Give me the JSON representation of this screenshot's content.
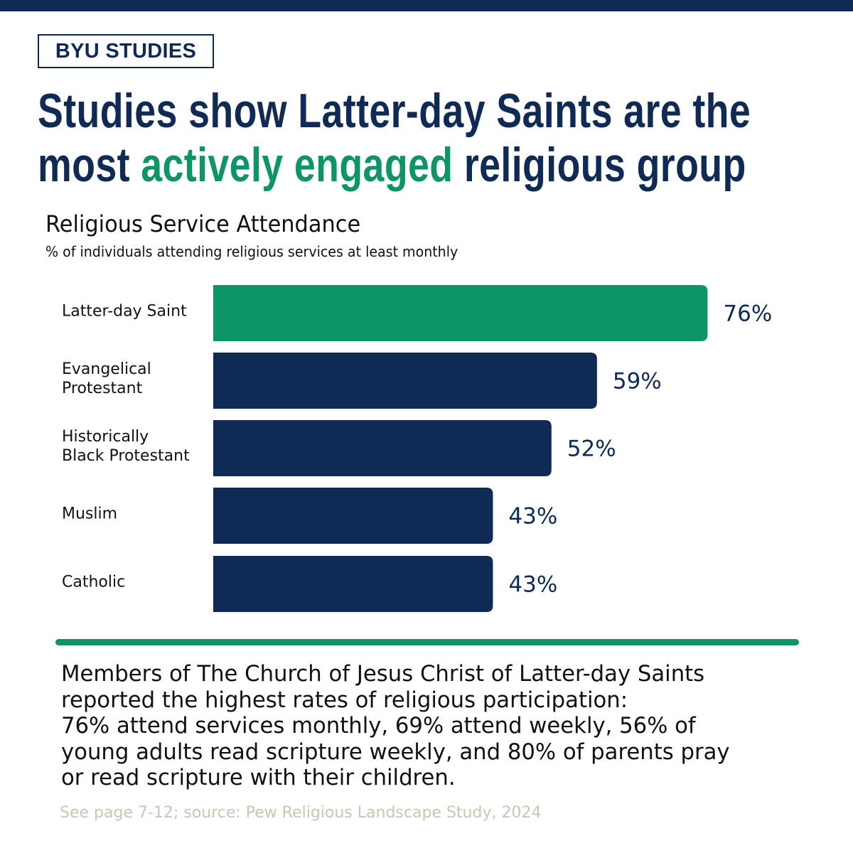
{
  "brand": {
    "logo_text": "BYU STUDIES",
    "color_primary": "#0f2a55",
    "color_accent": "#0e9567"
  },
  "headline": {
    "line1": "Studies show Latter-day Saints are the",
    "line2_before": "most ",
    "line2_accent": "actively engaged",
    "line2_after": " religious group"
  },
  "chart_data": {
    "type": "bar",
    "orientation": "horizontal",
    "title": "Religious Service Attendance",
    "subtitle": "% of individuals attending religious services at least monthly",
    "categories": [
      [
        "Latter-day Saint"
      ],
      [
        "Evangelical",
        "Protestant"
      ],
      [
        "Historically",
        "Black Protestant"
      ],
      [
        "Muslim"
      ],
      [
        "Catholic"
      ]
    ],
    "values": [
      76,
      59,
      52,
      43,
      43
    ],
    "value_labels": [
      "76%",
      "59%",
      "52%",
      "43%",
      "43%"
    ],
    "highlight_index": 0,
    "bar_color": "#0f2a55",
    "highlight_color": "#0e9567",
    "xlim": [
      0,
      100
    ],
    "grid": false,
    "legend": "none"
  },
  "summary_lines": [
    "Members of The Church of Jesus Christ of Latter-day Saints",
    "reported the highest rates of religious participation:",
    "76% attend services monthly, 69% attend weekly, 56% of",
    "young adults read scripture weekly, and 80% of parents pray",
    "or read scripture with their children."
  ],
  "source": "See page 7-12; source: Pew Religious Landscape Study, 2024"
}
